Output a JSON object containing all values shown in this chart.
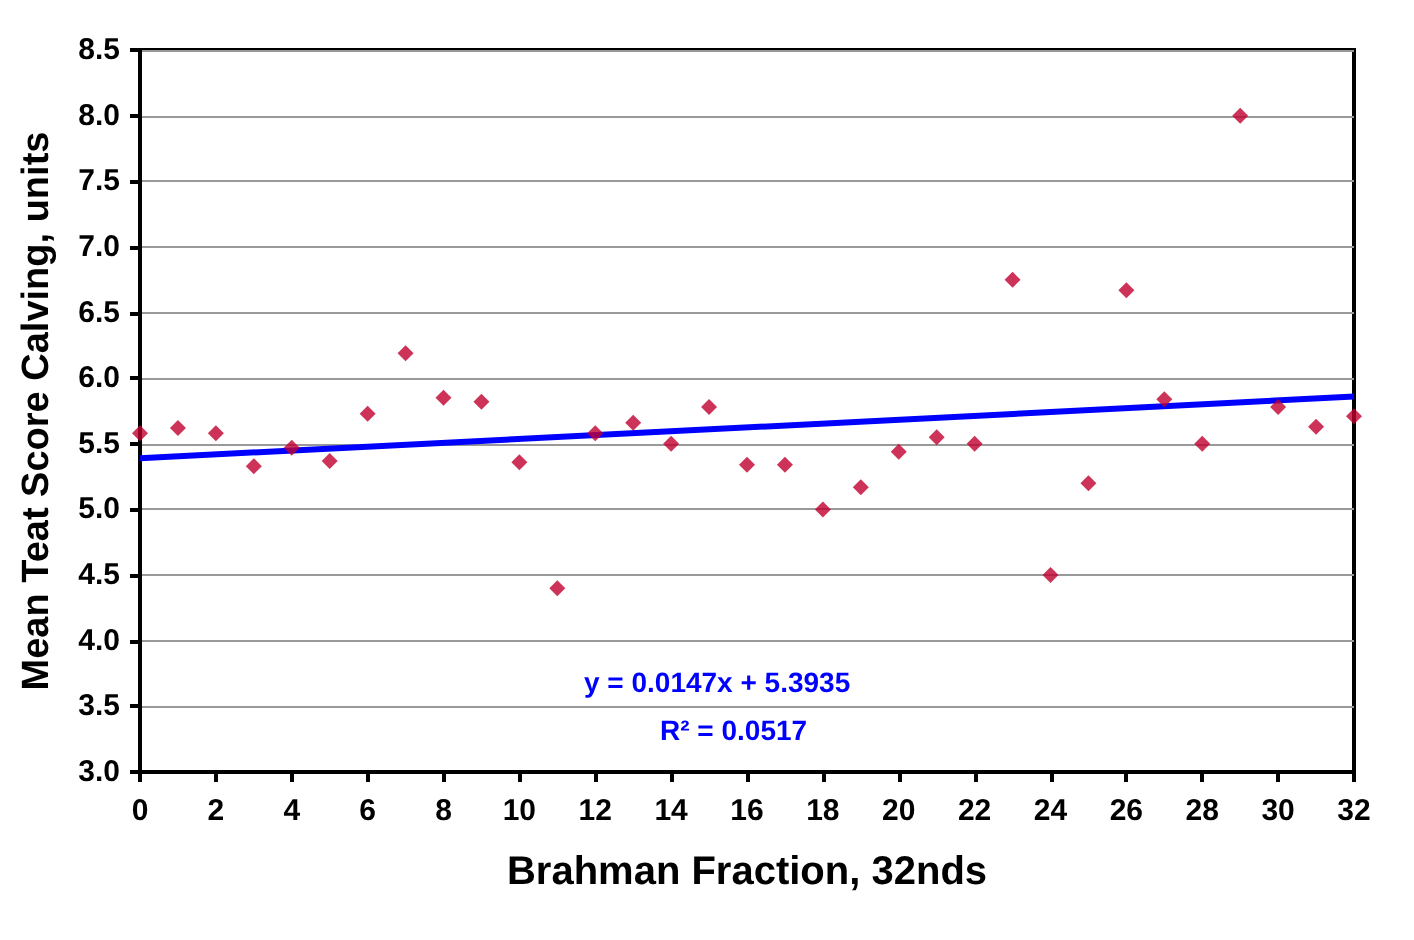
{
  "chart_data": {
    "type": "scatter",
    "xlabel": "Brahman Fraction, 32nds",
    "ylabel": "Mean Teat Score Calving, units",
    "series": [
      {
        "color": "#c00030",
        "marker": "diamond",
        "x": [
          0,
          1,
          2,
          3,
          4,
          5,
          6,
          7,
          8,
          9,
          10,
          11,
          12,
          13,
          14,
          15,
          16,
          17,
          18,
          19,
          20,
          21,
          22,
          23,
          24,
          25,
          26,
          27,
          28,
          29,
          30,
          31,
          32
        ],
        "values": [
          5.58,
          5.62,
          5.58,
          5.33,
          5.47,
          5.37,
          5.73,
          6.19,
          5.85,
          5.82,
          5.36,
          4.4,
          5.58,
          5.66,
          5.5,
          5.78,
          5.34,
          5.34,
          5.0,
          5.17,
          5.44,
          5.55,
          5.5,
          6.75,
          4.5,
          5.2,
          6.67,
          5.84,
          5.5,
          8.0,
          5.78,
          5.63,
          5.71
        ]
      },
      {
        "type": "line",
        "color": "#0000ff",
        "marker": "none",
        "line_style": "solid",
        "x": [
          0,
          32
        ],
        "values": [
          5.39,
          5.86
        ]
      }
    ],
    "annotations": [
      "y = 0.0147x + 5.3935",
      "R² = 0.0517"
    ],
    "xlim": [
      0,
      32
    ],
    "xticks": [
      0,
      2,
      4,
      6,
      8,
      10,
      12,
      14,
      16,
      18,
      20,
      22,
      24,
      26,
      28,
      30,
      32
    ],
    "ylim": [
      3.0,
      8.5
    ],
    "yticks": [
      {
        "value": 3,
        "label": "3.0"
      },
      {
        "value": 3.5,
        "label": "3.5"
      },
      {
        "value": 4,
        "label": "4.0"
      },
      {
        "value": 4.5,
        "label": "4.5"
      },
      {
        "value": 5,
        "label": "5.0"
      },
      {
        "value": 5.5,
        "label": "5.5"
      },
      {
        "value": 6,
        "label": "6.0"
      },
      {
        "value": 6.5,
        "label": "6.5"
      },
      {
        "value": 7,
        "label": "7.0"
      },
      {
        "value": 7.5,
        "label": "7.5"
      },
      {
        "value": 8,
        "label": "8.0"
      },
      {
        "value": 8.5,
        "label": "8.5"
      }
    ],
    "grid": "y"
  }
}
